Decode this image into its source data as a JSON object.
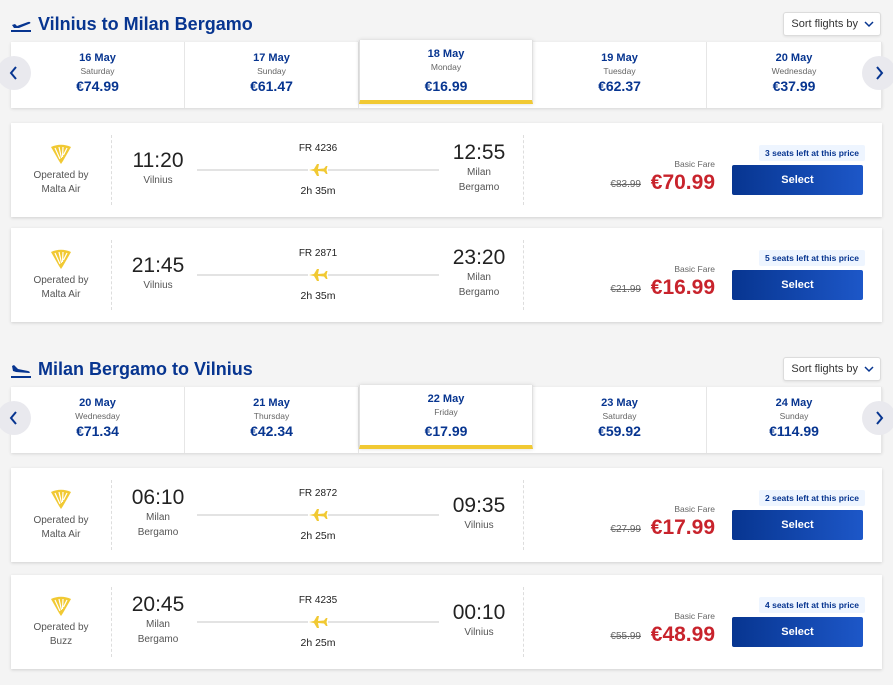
{
  "outbound": {
    "title": "Vilnius to Milan Bergamo",
    "sort_label": "Sort flights by",
    "dates": [
      {
        "day": "16 May",
        "weekday": "Saturday",
        "price": "€74.99",
        "selected": false
      },
      {
        "day": "17 May",
        "weekday": "Sunday",
        "price": "€61.47",
        "selected": false
      },
      {
        "day": "18 May",
        "weekday": "Monday",
        "price": "€16.99",
        "selected": true
      },
      {
        "day": "19 May",
        "weekday": "Tuesday",
        "price": "€62.37",
        "selected": false
      },
      {
        "day": "20 May",
        "weekday": "Wednesday",
        "price": "€37.99",
        "selected": false
      }
    ],
    "flights": [
      {
        "operator_label": "Operated by",
        "operator": "Malta Air",
        "dep_time": "11:20",
        "dep_place_1": "Vilnius",
        "dep_place_2": "",
        "flight_no": "FR 4236",
        "duration": "2h 35m",
        "arr_time": "12:55",
        "arr_place_1": "Milan",
        "arr_place_2": "Bergamo",
        "fare_label": "Basic Fare",
        "old_price": "€83.99",
        "price": "€70.99",
        "seats": "3 seats left at this price",
        "select_label": "Select"
      },
      {
        "operator_label": "Operated by",
        "operator": "Malta Air",
        "dep_time": "21:45",
        "dep_place_1": "Vilnius",
        "dep_place_2": "",
        "flight_no": "FR 2871",
        "duration": "2h 35m",
        "arr_time": "23:20",
        "arr_place_1": "Milan",
        "arr_place_2": "Bergamo",
        "fare_label": "Basic Fare",
        "old_price": "€21.99",
        "price": "€16.99",
        "seats": "5 seats left at this price",
        "select_label": "Select"
      }
    ]
  },
  "inbound": {
    "title": "Milan Bergamo to Vilnius",
    "sort_label": "Sort flights by",
    "dates": [
      {
        "day": "20 May",
        "weekday": "Wednesday",
        "price": "€71.34",
        "selected": false
      },
      {
        "day": "21 May",
        "weekday": "Thursday",
        "price": "€42.34",
        "selected": false
      },
      {
        "day": "22 May",
        "weekday": "Friday",
        "price": "€17.99",
        "selected": true
      },
      {
        "day": "23 May",
        "weekday": "Saturday",
        "price": "€59.92",
        "selected": false
      },
      {
        "day": "24 May",
        "weekday": "Sunday",
        "price": "€114.99",
        "selected": false
      }
    ],
    "flights": [
      {
        "operator_label": "Operated by",
        "operator": "Malta Air",
        "dep_time": "06:10",
        "dep_place_1": "Milan",
        "dep_place_2": "Bergamo",
        "flight_no": "FR 2872",
        "duration": "2h 25m",
        "arr_time": "09:35",
        "arr_place_1": "Vilnius",
        "arr_place_2": "",
        "fare_label": "Basic Fare",
        "old_price": "€27.99",
        "price": "€17.99",
        "seats": "2 seats left at this price",
        "select_label": "Select"
      },
      {
        "operator_label": "Operated by",
        "operator": "Buzz",
        "dep_time": "20:45",
        "dep_place_1": "Milan",
        "dep_place_2": "Bergamo",
        "flight_no": "FR 4235",
        "duration": "2h 25m",
        "arr_time": "00:10",
        "arr_place_1": "Vilnius",
        "arr_place_2": "",
        "fare_label": "Basic Fare",
        "old_price": "€55.99",
        "price": "€48.99",
        "seats": "4 seats left at this price",
        "select_label": "Select"
      }
    ]
  },
  "colors": {
    "brand_blue": "#073590",
    "accent_yellow": "#f1c933",
    "price_red": "#c8232c"
  },
  "icons": {
    "section_out": "plane-takeoff-icon",
    "section_in": "plane-landing-icon",
    "operator_logo": "harp-logo-icon",
    "flight_path": "plane-icon",
    "sort": "chevron-down-icon",
    "prev": "chevron-left-icon",
    "next": "chevron-right-icon"
  }
}
